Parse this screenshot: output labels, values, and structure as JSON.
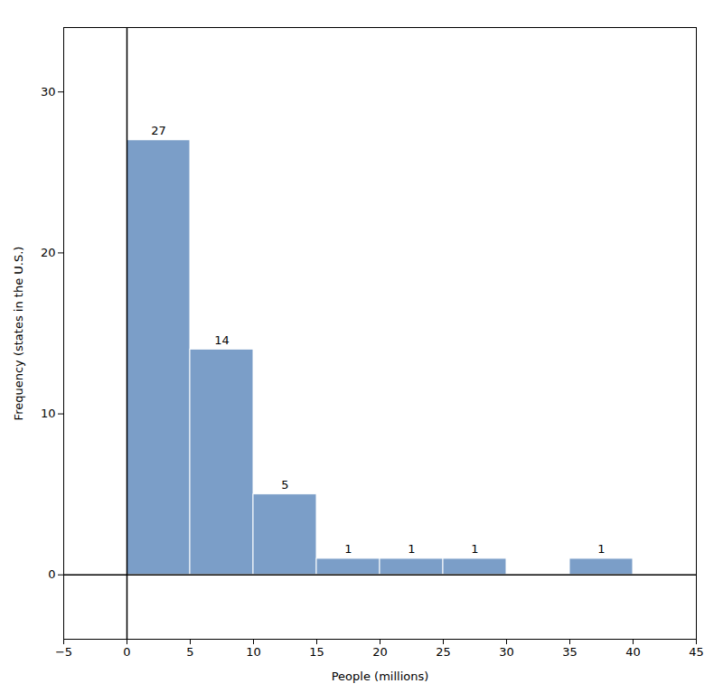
{
  "chart_data": {
    "type": "histogram",
    "bins": [
      0,
      5,
      10,
      15,
      20,
      25,
      30,
      35,
      40
    ],
    "values": [
      27,
      14,
      5,
      1,
      1,
      1,
      0,
      1
    ],
    "color": "#7b9ec8",
    "xlabel": "People (millions)",
    "ylabel": "Frequency (states in the U.S.)",
    "xlim": [
      -5,
      45
    ],
    "ylim": [
      -4,
      34
    ],
    "xticks": [
      -5,
      0,
      5,
      10,
      15,
      20,
      25,
      30,
      35,
      40,
      45
    ],
    "yticks": [
      0,
      10,
      20,
      30
    ],
    "data_labels": true,
    "grid": false,
    "vline_x": 0,
    "hline_y": 0
  }
}
